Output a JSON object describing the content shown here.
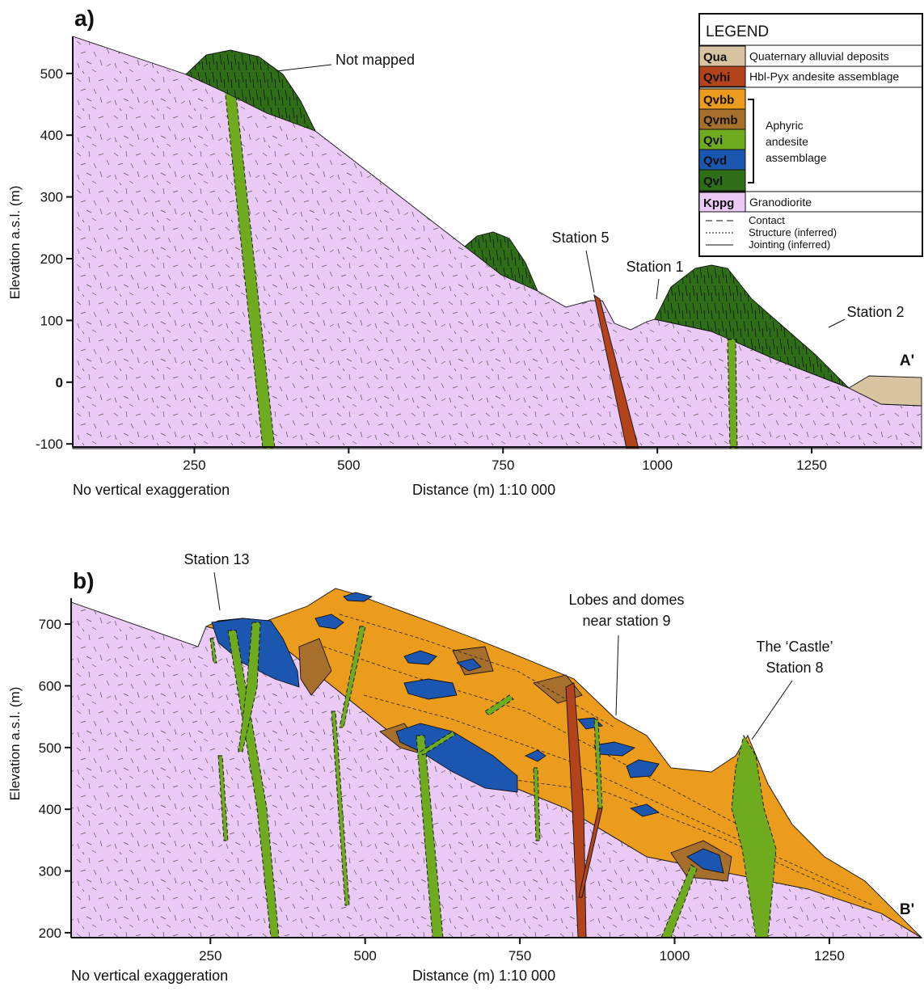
{
  "legend": {
    "title": "LEGEND",
    "units": [
      {
        "code": "Qua",
        "name": "Quaternary alluvial deposits",
        "color": "#d9c4a2"
      },
      {
        "code": "Qvhi",
        "name": "Hbl-Pyx andesite assemblage",
        "color": "#b3431b"
      },
      {
        "code": "Qvbb",
        "color": "#ec9c1c"
      },
      {
        "code": "Qvmb",
        "color": "#a66f2c"
      },
      {
        "code": "Qvi",
        "color": "#6eab1f"
      },
      {
        "code": "Qvd",
        "color": "#1b56b0"
      },
      {
        "code": "Qvl",
        "color": "#2e6e17"
      },
      {
        "code": "Kppg",
        "name": "Granodiorite",
        "color": "#ebcaf7"
      }
    ],
    "group_label": [
      "Aphyric",
      "andesite",
      "assemblage"
    ],
    "lines": [
      "Contact",
      "Structure (inferred)",
      "Jointing  (inferred)"
    ]
  },
  "panels": [
    {
      "label": "a)",
      "y_label": "Elevation a.s.l. (m)",
      "note": "No vertical exaggeration",
      "x_label": "Distance (m) 1:10 000",
      "xlim": [
        53,
        1428
      ],
      "ylim": [
        -105,
        560
      ],
      "xticks": [
        250,
        500,
        750,
        1000,
        1250
      ],
      "yticks": [
        -100,
        0,
        100,
        200,
        300,
        400,
        500
      ],
      "annotations": [
        "Not mapped",
        "Station 5",
        "Station 1",
        "Station 2",
        "A'"
      ]
    },
    {
      "label": "b)",
      "y_label": "Elevation a.s.l. (m)",
      "note": "No vertical exaggeration",
      "x_label": "Distance (m) 1:10 000",
      "xlim": [
        25,
        1399
      ],
      "ylim": [
        192,
        742
      ],
      "xticks": [
        250,
        500,
        750,
        1000,
        1250
      ],
      "yticks": [
        200,
        300,
        400,
        500,
        600,
        700
      ],
      "annotations": [
        "Station 13",
        "Lobes and domes",
        "near station 9",
        "The ‘Castle’",
        "Station 8",
        "B'"
      ]
    }
  ]
}
